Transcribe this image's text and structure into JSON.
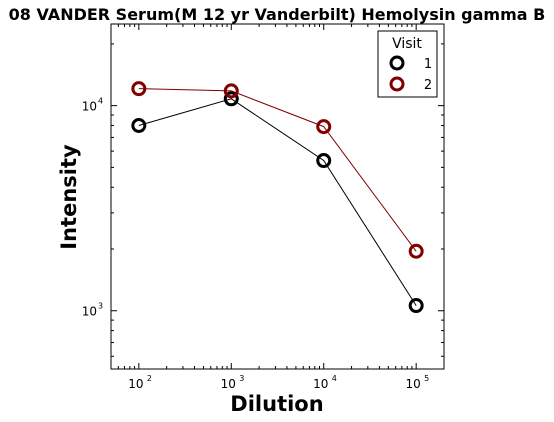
{
  "chart_data": {
    "type": "line",
    "title": "08 VANDER Serum(M 12 yr Vanderbilt) Hemolysin gamma B",
    "xlabel": "Dilution",
    "ylabel": "Intensity",
    "xscale": "log",
    "yscale": "log",
    "xlim": [
      50,
      200000
    ],
    "ylim": [
      520,
      25000
    ],
    "x_ticks": [
      {
        "value": 100,
        "base": "10",
        "exp": "2"
      },
      {
        "value": 1000,
        "base": "10",
        "exp": "3"
      },
      {
        "value": 10000,
        "base": "10",
        "exp": "4"
      },
      {
        "value": 100000,
        "base": "10",
        "exp": "5"
      }
    ],
    "y_ticks": [
      {
        "value": 1000,
        "base": "10",
        "exp": "3"
      },
      {
        "value": 10000,
        "base": "10",
        "exp": "4"
      }
    ],
    "x": [
      100,
      1000,
      10000,
      100000
    ],
    "series": [
      {
        "name": "1",
        "color": "#000000",
        "values": [
          8000,
          10800,
          5400,
          1060
        ]
      },
      {
        "name": "2",
        "color": "#800000",
        "values": [
          12100,
          11800,
          7900,
          1950
        ]
      }
    ],
    "legend": {
      "title": "Visit",
      "position": "top-right"
    },
    "grid": false
  }
}
